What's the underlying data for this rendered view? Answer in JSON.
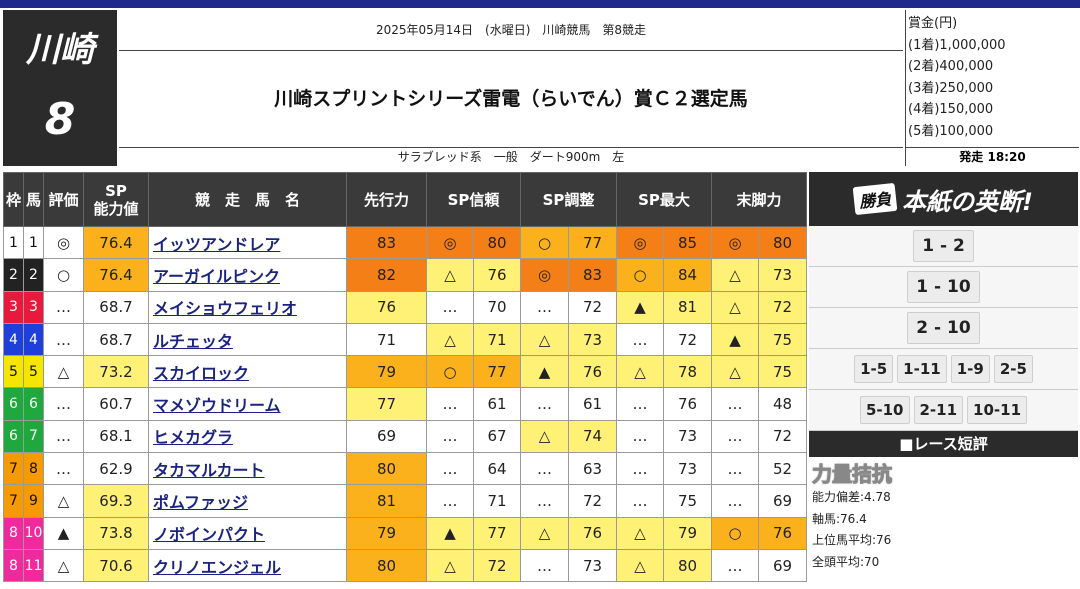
{
  "course": {
    "name": "川崎",
    "race_no": "8"
  },
  "header": {
    "date_line": "2025年05月14日　(水曜日)　川崎競馬　第8競走",
    "title": "川崎スプリントシリーズ雷電（らいでん）賞Ｃ２選定馬",
    "conditions": "サラブレッド系　一般　ダート900m　左"
  },
  "prize": {
    "lines": [
      "賞金(円)",
      "(1着)1,000,000",
      "(2着)400,000",
      "(3着)250,000",
      "(4着)150,000",
      "(5着)100,000"
    ],
    "start": "発走 18:20"
  },
  "columns": {
    "waku": "枠",
    "uma": "馬",
    "eval": "評価",
    "sp_line1": "SP",
    "sp_line2": "能力値",
    "name": "競　走　馬　名",
    "senko": "先行力",
    "shinrai": "SP信頼",
    "chosei": "SP調整",
    "saidai": "SP最大",
    "matsu": "末脚力"
  },
  "horses": [
    {
      "waku": "1",
      "uma": "1",
      "eval": "◎",
      "sp": "76.4",
      "name": "イッツアンドレア",
      "senko": "83",
      "shinrai_mark": "◎",
      "shinrai": "80",
      "chosei_mark": "○",
      "chosei": "77",
      "saidai_mark": "◎",
      "saidai": "85",
      "matsu_mark": "◎",
      "matsu": "80"
    },
    {
      "waku": "2",
      "uma": "2",
      "eval": "○",
      "sp": "76.4",
      "name": "アーガイルピンク",
      "senko": "82",
      "shinrai_mark": "△",
      "shinrai": "76",
      "chosei_mark": "◎",
      "chosei": "83",
      "saidai_mark": "○",
      "saidai": "84",
      "matsu_mark": "△",
      "matsu": "73"
    },
    {
      "waku": "3",
      "uma": "3",
      "eval": "…",
      "sp": "68.7",
      "name": "メイショウフェリオ",
      "senko": "76",
      "shinrai_mark": "…",
      "shinrai": "70",
      "chosei_mark": "…",
      "chosei": "72",
      "saidai_mark": "▲",
      "saidai": "81",
      "matsu_mark": "△",
      "matsu": "72"
    },
    {
      "waku": "4",
      "uma": "4",
      "eval": "…",
      "sp": "68.7",
      "name": "ルチェッタ",
      "senko": "71",
      "shinrai_mark": "△",
      "shinrai": "71",
      "chosei_mark": "△",
      "chosei": "73",
      "saidai_mark": "…",
      "saidai": "72",
      "matsu_mark": "▲",
      "matsu": "75"
    },
    {
      "waku": "5",
      "uma": "5",
      "eval": "△",
      "sp": "73.2",
      "name": "スカイロック",
      "senko": "79",
      "shinrai_mark": "○",
      "shinrai": "77",
      "chosei_mark": "▲",
      "chosei": "76",
      "saidai_mark": "△",
      "saidai": "78",
      "matsu_mark": "△",
      "matsu": "75"
    },
    {
      "waku": "6",
      "uma": "6",
      "eval": "…",
      "sp": "60.7",
      "name": "マメゾウドリーム",
      "senko": "77",
      "shinrai_mark": "…",
      "shinrai": "61",
      "chosei_mark": "…",
      "chosei": "61",
      "saidai_mark": "…",
      "saidai": "76",
      "matsu_mark": "…",
      "matsu": "48"
    },
    {
      "waku": "6",
      "uma": "7",
      "eval": "…",
      "sp": "68.1",
      "name": "ヒメカグラ",
      "senko": "69",
      "shinrai_mark": "…",
      "shinrai": "67",
      "chosei_mark": "△",
      "chosei": "74",
      "saidai_mark": "…",
      "saidai": "73",
      "matsu_mark": "…",
      "matsu": "72"
    },
    {
      "waku": "7",
      "uma": "8",
      "eval": "…",
      "sp": "62.9",
      "name": "タカマルカート",
      "senko": "80",
      "shinrai_mark": "…",
      "shinrai": "64",
      "chosei_mark": "…",
      "chosei": "63",
      "saidai_mark": "…",
      "saidai": "73",
      "matsu_mark": "…",
      "matsu": "52"
    },
    {
      "waku": "7",
      "uma": "9",
      "eval": "△",
      "sp": "69.3",
      "name": "ポムファッジ",
      "senko": "81",
      "shinrai_mark": "…",
      "shinrai": "71",
      "chosei_mark": "…",
      "chosei": "72",
      "saidai_mark": "…",
      "saidai": "75",
      "matsu_mark": "…",
      "matsu": "69"
    },
    {
      "waku": "8",
      "uma": "10",
      "eval": "▲",
      "sp": "73.8",
      "name": "ノボインパクト",
      "senko": "79",
      "shinrai_mark": "▲",
      "shinrai": "77",
      "chosei_mark": "△",
      "chosei": "76",
      "saidai_mark": "△",
      "saidai": "79",
      "matsu_mark": "○",
      "matsu": "76"
    },
    {
      "waku": "8",
      "uma": "11",
      "eval": "△",
      "sp": "70.6",
      "name": "クリノエンジェル",
      "senko": "80",
      "shinrai_mark": "△",
      "shinrai": "72",
      "chosei_mark": "…",
      "chosei": "73",
      "saidai_mark": "△",
      "saidai": "80",
      "matsu_mark": "…",
      "matsu": "69"
    }
  ],
  "waku_colors": {
    "1": {
      "bg": "#ffffff",
      "fg": "#111111"
    },
    "2": {
      "bg": "#222222",
      "fg": "#ffffff"
    },
    "3": {
      "bg": "#e8193c",
      "fg": "#ffffff"
    },
    "4": {
      "bg": "#1e3fd9",
      "fg": "#ffffff"
    },
    "5": {
      "bg": "#f5e600",
      "fg": "#111111"
    },
    "6": {
      "bg": "#1fa83d",
      "fg": "#ffffff"
    },
    "7": {
      "bg": "#f59a00",
      "fg": "#111111"
    },
    "8": {
      "bg": "#f02a9c",
      "fg": "#ffffff"
    }
  },
  "heat_colors": {
    "top": "#f57f17",
    "high": "#fbb11c",
    "mid": "#fff176",
    "none": "#ffffff"
  },
  "picks": {
    "banner_badge": "勝負",
    "banner_title": "本紙の英断!",
    "big": [
      "1 - 2",
      "1 - 10",
      "2 - 10"
    ],
    "small_row1": [
      "1-5",
      "1-11",
      "1-9",
      "2-5"
    ],
    "small_row2": [
      "5-10",
      "2-11",
      "10-11"
    ]
  },
  "review": {
    "header": "■レース短評",
    "title": "力量拮抗",
    "lines": [
      "能力偏差:4.78",
      "軸馬:76.4",
      "上位馬平均:76",
      "全頭平均:70"
    ]
  }
}
